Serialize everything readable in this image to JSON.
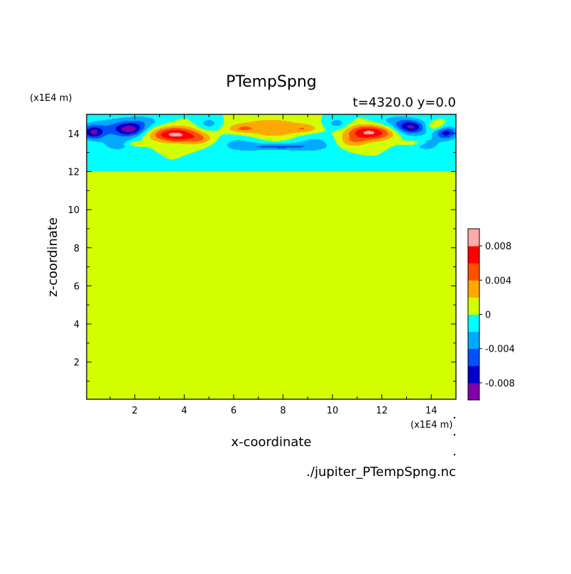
{
  "chart_data": {
    "type": "heatmap",
    "title": "PTempSpng",
    "subtitle": "t=4320.0  y=0.0",
    "xlabel": "x-coordinate",
    "ylabel": "z-coordinate",
    "x_unit_label": "(x1E4 m)",
    "y_unit_label": "(x1E4 m)",
    "source_label": "./jupiter_PTempSpng.nc",
    "xlim": [
      0.05,
      15.0
    ],
    "ylim": [
      0.05,
      15.0
    ],
    "x_ticks": [
      2,
      4,
      6,
      8,
      10,
      12,
      14
    ],
    "x_tick_labels": [
      "2",
      "4",
      "6",
      "8",
      "10",
      "12",
      "14"
    ],
    "y_ticks": [
      2,
      4,
      6,
      8,
      10,
      12,
      14
    ],
    "y_tick_labels": [
      "2",
      "4",
      "6",
      "8",
      "10",
      "12",
      "14"
    ],
    "grid": false,
    "colorbar": {
      "placement": "right",
      "levels": [
        -0.01,
        -0.008,
        -0.006,
        -0.004,
        -0.002,
        0.0,
        0.002,
        0.004,
        0.006,
        0.008,
        0.01
      ],
      "colors": [
        "#7f00a8",
        "#0000c8",
        "#0050ff",
        "#00aaff",
        "#00ffff",
        "#d4ff00",
        "#ffa800",
        "#ff5000",
        "#ff0000",
        "#ffaaaa"
      ],
      "tick_values": [
        0.008,
        0.004,
        0,
        -0.004,
        -0.008
      ],
      "tick_labels": [
        "0.008",
        "0.004",
        "0",
        "-0.004",
        "-0.008"
      ]
    },
    "background_value": 0.0,
    "features": [
      {
        "x": 0.3,
        "z": 14.05,
        "sx": 0.45,
        "sz": 0.35,
        "value": -0.007
      },
      {
        "x": 0.9,
        "z": 14.3,
        "sx": 0.9,
        "sz": 0.55,
        "value": -0.003
      },
      {
        "x": 1.8,
        "z": 14.2,
        "sx": 0.6,
        "sz": 0.35,
        "value": -0.0075
      },
      {
        "x": 2.3,
        "z": 14.6,
        "sx": 0.9,
        "sz": 0.4,
        "value": -0.003
      },
      {
        "x": 1.3,
        "z": 13.4,
        "sx": 0.8,
        "sz": 0.45,
        "value": -0.0025
      },
      {
        "x": 2.1,
        "z": 13.45,
        "sx": 0.4,
        "sz": 0.12,
        "value": 0.003
      },
      {
        "x": 3.6,
        "z": 13.95,
        "sx": 0.95,
        "sz": 0.4,
        "value": 0.0085
      },
      {
        "x": 4.6,
        "z": 13.7,
        "sx": 0.6,
        "sz": 0.3,
        "value": 0.003
      },
      {
        "x": 5.0,
        "z": 14.5,
        "sx": 0.5,
        "sz": 0.35,
        "value": -0.003
      },
      {
        "x": 6.3,
        "z": 13.5,
        "sx": 1.0,
        "sz": 0.55,
        "value": -0.0028
      },
      {
        "x": 7.5,
        "z": 14.25,
        "sx": 1.6,
        "sz": 0.55,
        "value": 0.004
      },
      {
        "x": 6.3,
        "z": 14.25,
        "sx": 0.5,
        "sz": 0.2,
        "value": 0.0025
      },
      {
        "x": 8.9,
        "z": 14.25,
        "sx": 0.5,
        "sz": 0.2,
        "value": 0.0025
      },
      {
        "x": 7.8,
        "z": 13.3,
        "sx": 1.2,
        "sz": 0.18,
        "value": -0.0042
      },
      {
        "x": 9.2,
        "z": 13.5,
        "sx": 1.0,
        "sz": 0.55,
        "value": -0.0028
      },
      {
        "x": 10.2,
        "z": 14.5,
        "sx": 0.5,
        "sz": 0.35,
        "value": -0.003
      },
      {
        "x": 11.5,
        "z": 14.05,
        "sx": 0.95,
        "sz": 0.4,
        "value": 0.0085
      },
      {
        "x": 10.8,
        "z": 13.55,
        "sx": 0.6,
        "sz": 0.3,
        "value": 0.003
      },
      {
        "x": 13.2,
        "z": 14.3,
        "sx": 0.6,
        "sz": 0.35,
        "value": -0.0075
      },
      {
        "x": 12.6,
        "z": 14.6,
        "sx": 0.9,
        "sz": 0.4,
        "value": -0.003
      },
      {
        "x": 14.6,
        "z": 14.05,
        "sx": 0.45,
        "sz": 0.35,
        "value": -0.007
      },
      {
        "x": 13.8,
        "z": 13.4,
        "sx": 0.8,
        "sz": 0.45,
        "value": -0.0025
      },
      {
        "x": 13.2,
        "z": 13.5,
        "sx": 0.4,
        "sz": 0.12,
        "value": 0.003
      },
      {
        "x": 14.2,
        "z": 14.35,
        "sx": 0.5,
        "sz": 0.25,
        "value": 0.003
      }
    ]
  }
}
